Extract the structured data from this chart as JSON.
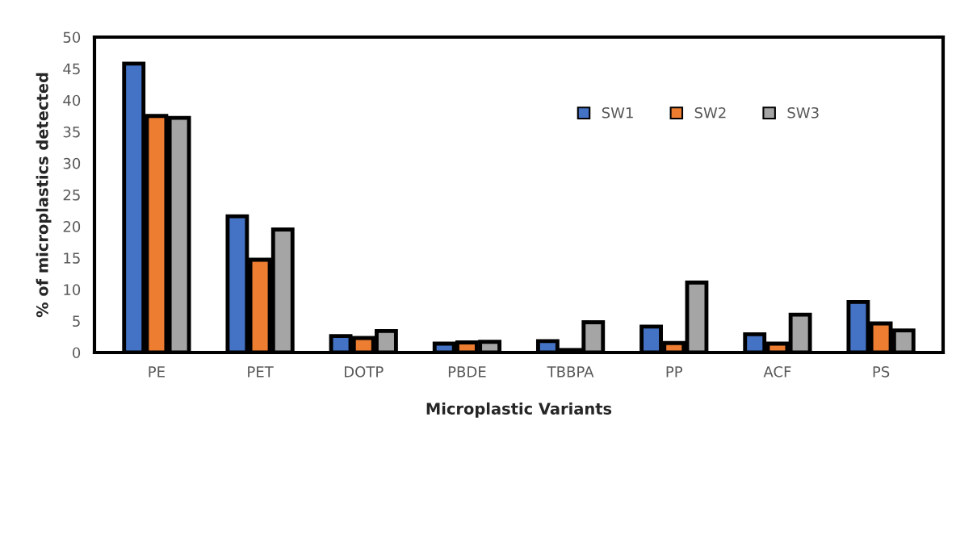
{
  "chart_data": {
    "type": "bar",
    "xlabel": "Microplastic Variants",
    "ylabel": "% of microplastics detected",
    "categories": [
      "PE",
      "PET",
      "DOTP",
      "PBDE",
      "TBBPA",
      "PP",
      "ACF",
      "PS"
    ],
    "series": [
      {
        "name": "SW1",
        "color": "#4472c4",
        "values": [
          45.8,
          21.6,
          2.6,
          1.4,
          1.8,
          4.1,
          2.9,
          8.0
        ]
      },
      {
        "name": "SW2",
        "color": "#ed7d31",
        "values": [
          37.5,
          14.7,
          2.3,
          1.6,
          0.4,
          1.5,
          1.4,
          4.6
        ]
      },
      {
        "name": "SW3",
        "color": "#a5a5a5",
        "values": [
          37.2,
          19.5,
          3.4,
          1.7,
          4.8,
          11.1,
          6.0,
          3.5
        ]
      }
    ],
    "ylim": [
      0,
      50
    ],
    "yticks": [
      0,
      5,
      10,
      15,
      20,
      25,
      30,
      35,
      40,
      45,
      50
    ],
    "grid": false,
    "legend": "top right"
  }
}
